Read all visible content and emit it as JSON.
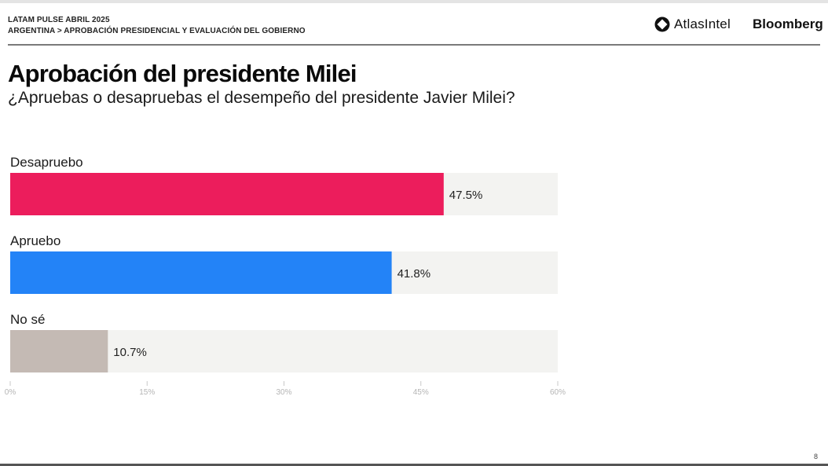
{
  "header": {
    "kicker_line1": "LATAM PULSE ABRIL 2025",
    "kicker_line2": "ARGENTINA > APROBACIÓN PRESIDENCIAL Y EVALUACIÓN DEL GOBIERNO",
    "logo_atlas": "AtlasIntel",
    "logo_bloomberg": "Bloomberg"
  },
  "page_number": "8",
  "chart_data": {
    "type": "bar",
    "orientation": "horizontal",
    "title": "Aprobación del presidente Milei",
    "subtitle": "¿Apruebas o desapruebas el desempeño del presidente Javier Milei?",
    "categories": [
      "Desapruebo",
      "Apruebo",
      "No sé"
    ],
    "values": [
      47.5,
      41.8,
      10.7
    ],
    "value_labels": [
      "47.5%",
      "41.8%",
      "10.7%"
    ],
    "colors": [
      "#ec1d5c",
      "#2383f7",
      "#c4bab4"
    ],
    "track_color": "#f3f3f1",
    "xlim": [
      0,
      60
    ],
    "xticks": [
      0,
      15,
      30,
      45,
      60
    ],
    "xtick_labels": [
      "0%",
      "15%",
      "30%",
      "45%",
      "60%"
    ],
    "xlabel": "",
    "ylabel": "",
    "grid": false,
    "legend": "none"
  }
}
